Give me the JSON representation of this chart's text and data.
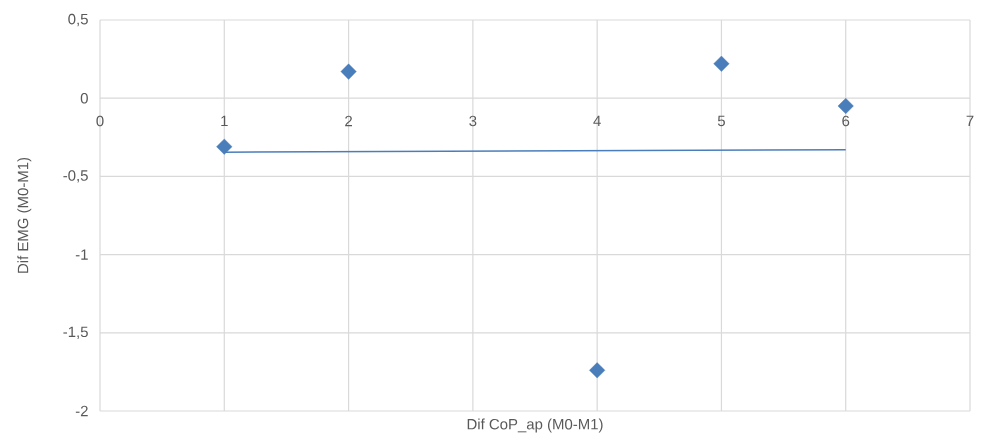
{
  "chart_data": {
    "type": "scatter",
    "xlabel": "Dif CoP_ap (M0-M1)",
    "ylabel": "Dif EMG (M0-M1)",
    "series": [
      {
        "color": "#4a7ebb",
        "marker": "diamond",
        "x": [
          1,
          2,
          4,
          5,
          6
        ],
        "values": [
          -0.31,
          0.17,
          -1.74,
          0.22,
          -0.05
        ]
      },
      {
        "type": "line",
        "color": "#4a7ebb",
        "marker": "none",
        "x": [
          1,
          6
        ],
        "values": [
          -0.345,
          -0.33
        ]
      }
    ],
    "xlim": [
      0,
      7
    ],
    "xticks": [
      0,
      1,
      2,
      3,
      4,
      5,
      6,
      7
    ],
    "ylim": [
      -2,
      0.5
    ],
    "yticks": [
      {
        "value": -2,
        "label": "-2"
      },
      {
        "value": -1.5,
        "label": "-1,5"
      },
      {
        "value": -1,
        "label": "-1"
      },
      {
        "value": -0.5,
        "label": "-0,5"
      },
      {
        "value": 0,
        "label": "0"
      },
      {
        "value": 0.5,
        "label": "0,5"
      }
    ],
    "grid": true
  }
}
